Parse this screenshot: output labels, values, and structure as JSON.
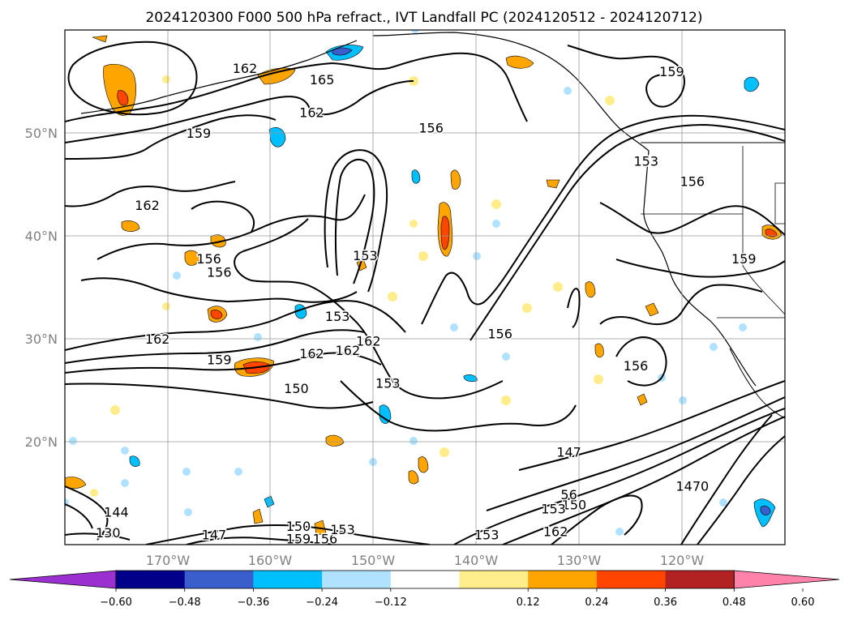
{
  "title": "2024120300 F000 500 hPa refract., IVT Landfall PC (2024120512 - 2024120712)",
  "map": {
    "lon_range": [
      -180,
      -110
    ],
    "lat_range": [
      10,
      60
    ],
    "lon_ticks": [
      {
        "value": -170,
        "label": "170°W"
      },
      {
        "value": -160,
        "label": "160°W"
      },
      {
        "value": -150,
        "label": "150°W"
      },
      {
        "value": -140,
        "label": "140°W"
      },
      {
        "value": -130,
        "label": "130°W"
      },
      {
        "value": -120,
        "label": "120°W"
      }
    ],
    "lat_ticks": [
      {
        "value": 20,
        "label": "20°N"
      },
      {
        "value": 30,
        "label": "30°N"
      },
      {
        "value": 40,
        "label": "40°N"
      },
      {
        "value": 50,
        "label": "50°N"
      }
    ],
    "gridlines": true,
    "contour_color": "#000000",
    "contour_labels": [
      {
        "lon": -162.5,
        "lat": 56.3,
        "text": "162"
      },
      {
        "lon": -155,
        "lat": 55.2,
        "text": "165"
      },
      {
        "lon": -156,
        "lat": 52,
        "text": "162"
      },
      {
        "lon": -167,
        "lat": 50,
        "text": "159"
      },
      {
        "lon": -172,
        "lat": 43,
        "text": "162"
      },
      {
        "lon": -166,
        "lat": 37.8,
        "text": "156"
      },
      {
        "lon": -150.8,
        "lat": 38.1,
        "text": "153"
      },
      {
        "lon": -165,
        "lat": 36.5,
        "text": "156"
      },
      {
        "lon": -153.5,
        "lat": 32.2,
        "text": "153"
      },
      {
        "lon": -150.5,
        "lat": 29.8,
        "text": "162"
      },
      {
        "lon": -152.5,
        "lat": 28.9,
        "text": "162"
      },
      {
        "lon": -171,
        "lat": 30,
        "text": "162"
      },
      {
        "lon": -165,
        "lat": 28,
        "text": "159"
      },
      {
        "lon": -156,
        "lat": 28.6,
        "text": "162"
      },
      {
        "lon": -157.5,
        "lat": 25.2,
        "text": "150"
      },
      {
        "lon": -148.6,
        "lat": 25.7,
        "text": "153"
      },
      {
        "lon": -144.4,
        "lat": 50.5,
        "text": "156"
      },
      {
        "lon": -137.7,
        "lat": 30.5,
        "text": "156"
      },
      {
        "lon": -124.5,
        "lat": 27.4,
        "text": "156"
      },
      {
        "lon": -119,
        "lat": 45.3,
        "text": "156"
      },
      {
        "lon": -121,
        "lat": 56,
        "text": "159"
      },
      {
        "lon": -123.5,
        "lat": 47.3,
        "text": "153"
      },
      {
        "lon": -114,
        "lat": 37.8,
        "text": "159"
      },
      {
        "lon": -131,
        "lat": 19,
        "text": "147"
      },
      {
        "lon": -130.5,
        "lat": 13.9,
        "text": "150"
      },
      {
        "lon": -132.5,
        "lat": 13.5,
        "text": "153"
      },
      {
        "lon": -131,
        "lat": 14.9,
        "text": "56"
      },
      {
        "lon": -132.3,
        "lat": 11.3,
        "text": "162"
      },
      {
        "lon": -139,
        "lat": 11,
        "text": "153"
      },
      {
        "lon": -119,
        "lat": 15.7,
        "text": "1470"
      },
      {
        "lon": -175,
        "lat": 13.2,
        "text": "144"
      },
      {
        "lon": -175.8,
        "lat": 11.2,
        "text": "130"
      },
      {
        "lon": -157.3,
        "lat": 11.8,
        "text": "150"
      },
      {
        "lon": -157.3,
        "lat": 10.6,
        "text": "159"
      },
      {
        "lon": -154.7,
        "lat": 10.6,
        "text": "156"
      },
      {
        "lon": -153,
        "lat": 11.5,
        "text": "153"
      },
      {
        "lon": -165.5,
        "lat": 11,
        "text": "147"
      }
    ]
  },
  "colorbar": {
    "colors": [
      "#9b30d0",
      "#00008b",
      "#3a5fcd",
      "#00bfff",
      "#b0e2ff",
      "#ffffff",
      "#ffec8b",
      "#ffa500",
      "#ff4500",
      "#b22222",
      "#ff82ab"
    ],
    "tick_labels": [
      "−0.60",
      "−0.48",
      "−0.36",
      "−0.24",
      "−0.12",
      "0.12",
      "0.24",
      "0.36",
      "0.48",
      "0.60"
    ]
  }
}
